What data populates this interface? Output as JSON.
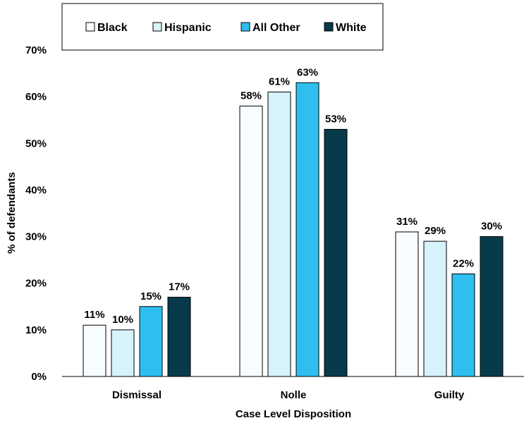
{
  "chart_data": {
    "type": "bar",
    "title": "",
    "xlabel": "Case Level Disposition",
    "ylabel": "% of defendants",
    "categories": [
      "Dismissal",
      "Nolle",
      "Guilty"
    ],
    "ylim": [
      0,
      70
    ],
    "yticks": [
      "0%",
      "10%",
      "20%",
      "30%",
      "40%",
      "50%",
      "60%",
      "70%"
    ],
    "grid": false,
    "legend_position": "top",
    "series": [
      {
        "name": "Black",
        "color": "#f7fcff",
        "values": [
          11,
          58,
          31
        ],
        "labels": [
          "11%",
          "58%",
          "31%"
        ]
      },
      {
        "name": "Hispanic",
        "color": "#d6f2fb",
        "values": [
          10,
          61,
          29
        ],
        "labels": [
          "10%",
          "61%",
          "29%"
        ]
      },
      {
        "name": "All Other",
        "color": "#2ebff0",
        "values": [
          15,
          63,
          22
        ],
        "labels": [
          "15%",
          "63%",
          "22%"
        ]
      },
      {
        "name": "White",
        "color": "#073a4b",
        "values": [
          17,
          53,
          30
        ],
        "labels": [
          "17%",
          "53%",
          "30%"
        ]
      }
    ]
  }
}
